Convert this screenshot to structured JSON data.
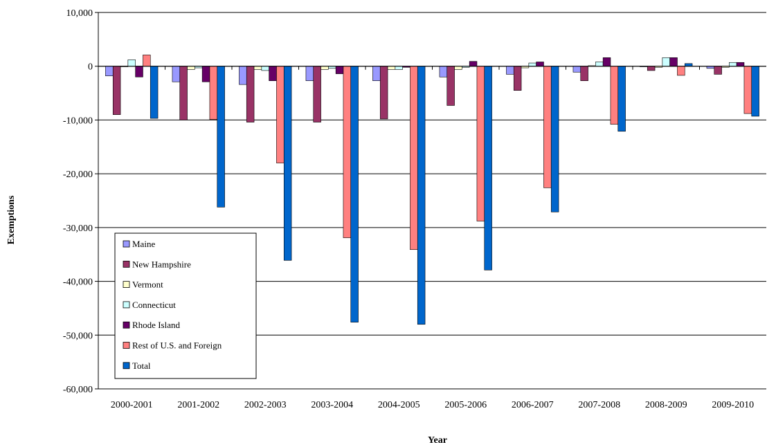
{
  "chart_data": {
    "type": "bar",
    "title": "",
    "xlabel": "Year",
    "ylabel": "Exemptions",
    "ylim": [
      -60000,
      10000
    ],
    "yticks": [
      10000,
      0,
      -10000,
      -20000,
      -30000,
      -40000,
      -50000,
      -60000
    ],
    "ytick_labels": [
      "10,000",
      "0",
      "-10,000",
      "-20,000",
      "-30,000",
      "-40,000",
      "-50,000",
      "-60,000"
    ],
    "grid": true,
    "legend_position": "bottom-left inside plot",
    "categories": [
      "2000-2001",
      "2001-2002",
      "2002-2003",
      "2003-2004",
      "2004-2005",
      "2005-2006",
      "2006-2007",
      "2007-2008",
      "2008-2009",
      "2009-2010"
    ],
    "series": [
      {
        "name": "Maine",
        "color": "#9999FF",
        "values": [
          -1800,
          -2900,
          -3400,
          -2700,
          -2700,
          -2000,
          -1500,
          -1100,
          -100,
          -400
        ]
      },
      {
        "name": "New Hampshire",
        "color": "#993366",
        "values": [
          -9000,
          -10000,
          -10400,
          -10400,
          -9800,
          -7300,
          -4500,
          -2700,
          -800,
          -1500
        ]
      },
      {
        "name": "Vermont",
        "color": "#FFFFCC",
        "values": [
          -100,
          -600,
          -600,
          -600,
          -600,
          -600,
          -300,
          100,
          -200,
          -200
        ]
      },
      {
        "name": "Connecticut",
        "color": "#CCFFFF",
        "values": [
          1200,
          -300,
          -800,
          -400,
          -600,
          -200,
          600,
          800,
          1600,
          700
        ]
      },
      {
        "name": "Rhode Island",
        "color": "#660066",
        "values": [
          -2000,
          -2900,
          -2700,
          -1400,
          -200,
          900,
          800,
          1600,
          1600,
          700
        ]
      },
      {
        "name": "Rest of U.S. and Foreign",
        "color": "#FF8080",
        "values": [
          2100,
          -9900,
          -18000,
          -31900,
          -34100,
          -28800,
          -22600,
          -10800,
          -1700,
          -8800
        ]
      },
      {
        "name": "Total",
        "color": "#0066CC",
        "values": [
          -9700,
          -26200,
          -36100,
          -47600,
          -48000,
          -37900,
          -27100,
          -12100,
          500,
          -9300
        ]
      }
    ]
  }
}
